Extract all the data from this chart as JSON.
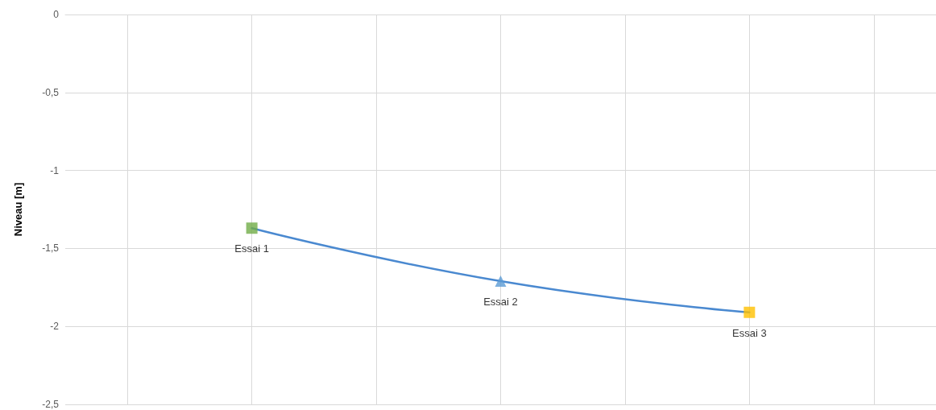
{
  "chart_data": {
    "type": "line",
    "ylabel": "Niveau [m]",
    "categories": [
      null,
      null,
      null,
      null,
      null,
      null,
      null
    ],
    "ylim": [
      -2.5,
      0
    ],
    "yticks": [
      {
        "value": -2.5,
        "label": "-2,5"
      },
      -2,
      {
        "value": -1.5,
        "label": "-1,5"
      },
      -1,
      {
        "value": -0.5,
        "label": "-0,5"
      },
      0
    ],
    "tick_labels": "y",
    "grid": true,
    "line_style": "solid",
    "marker": "none",
    "series": [
      {
        "color": "#4a89d0",
        "values": [
          null,
          -1.37,
          null,
          -1.71,
          null,
          -1.91,
          null
        ]
      },
      {
        "type": "scatter",
        "name": "Essai 1",
        "color": "#70ad47",
        "marker": "square",
        "values": [
          null,
          -1.37,
          null,
          null,
          null,
          null,
          null
        ]
      },
      {
        "type": "scatter",
        "name": "Essai 2",
        "color": "#5b9bd5",
        "marker": "triangle",
        "values": [
          null,
          null,
          null,
          -1.71,
          null,
          null,
          null
        ]
      },
      {
        "type": "scatter",
        "name": "Essai 3",
        "color": "#ffc000",
        "marker": "square",
        "values": [
          null,
          null,
          null,
          null,
          null,
          -1.91,
          null
        ]
      }
    ]
  }
}
